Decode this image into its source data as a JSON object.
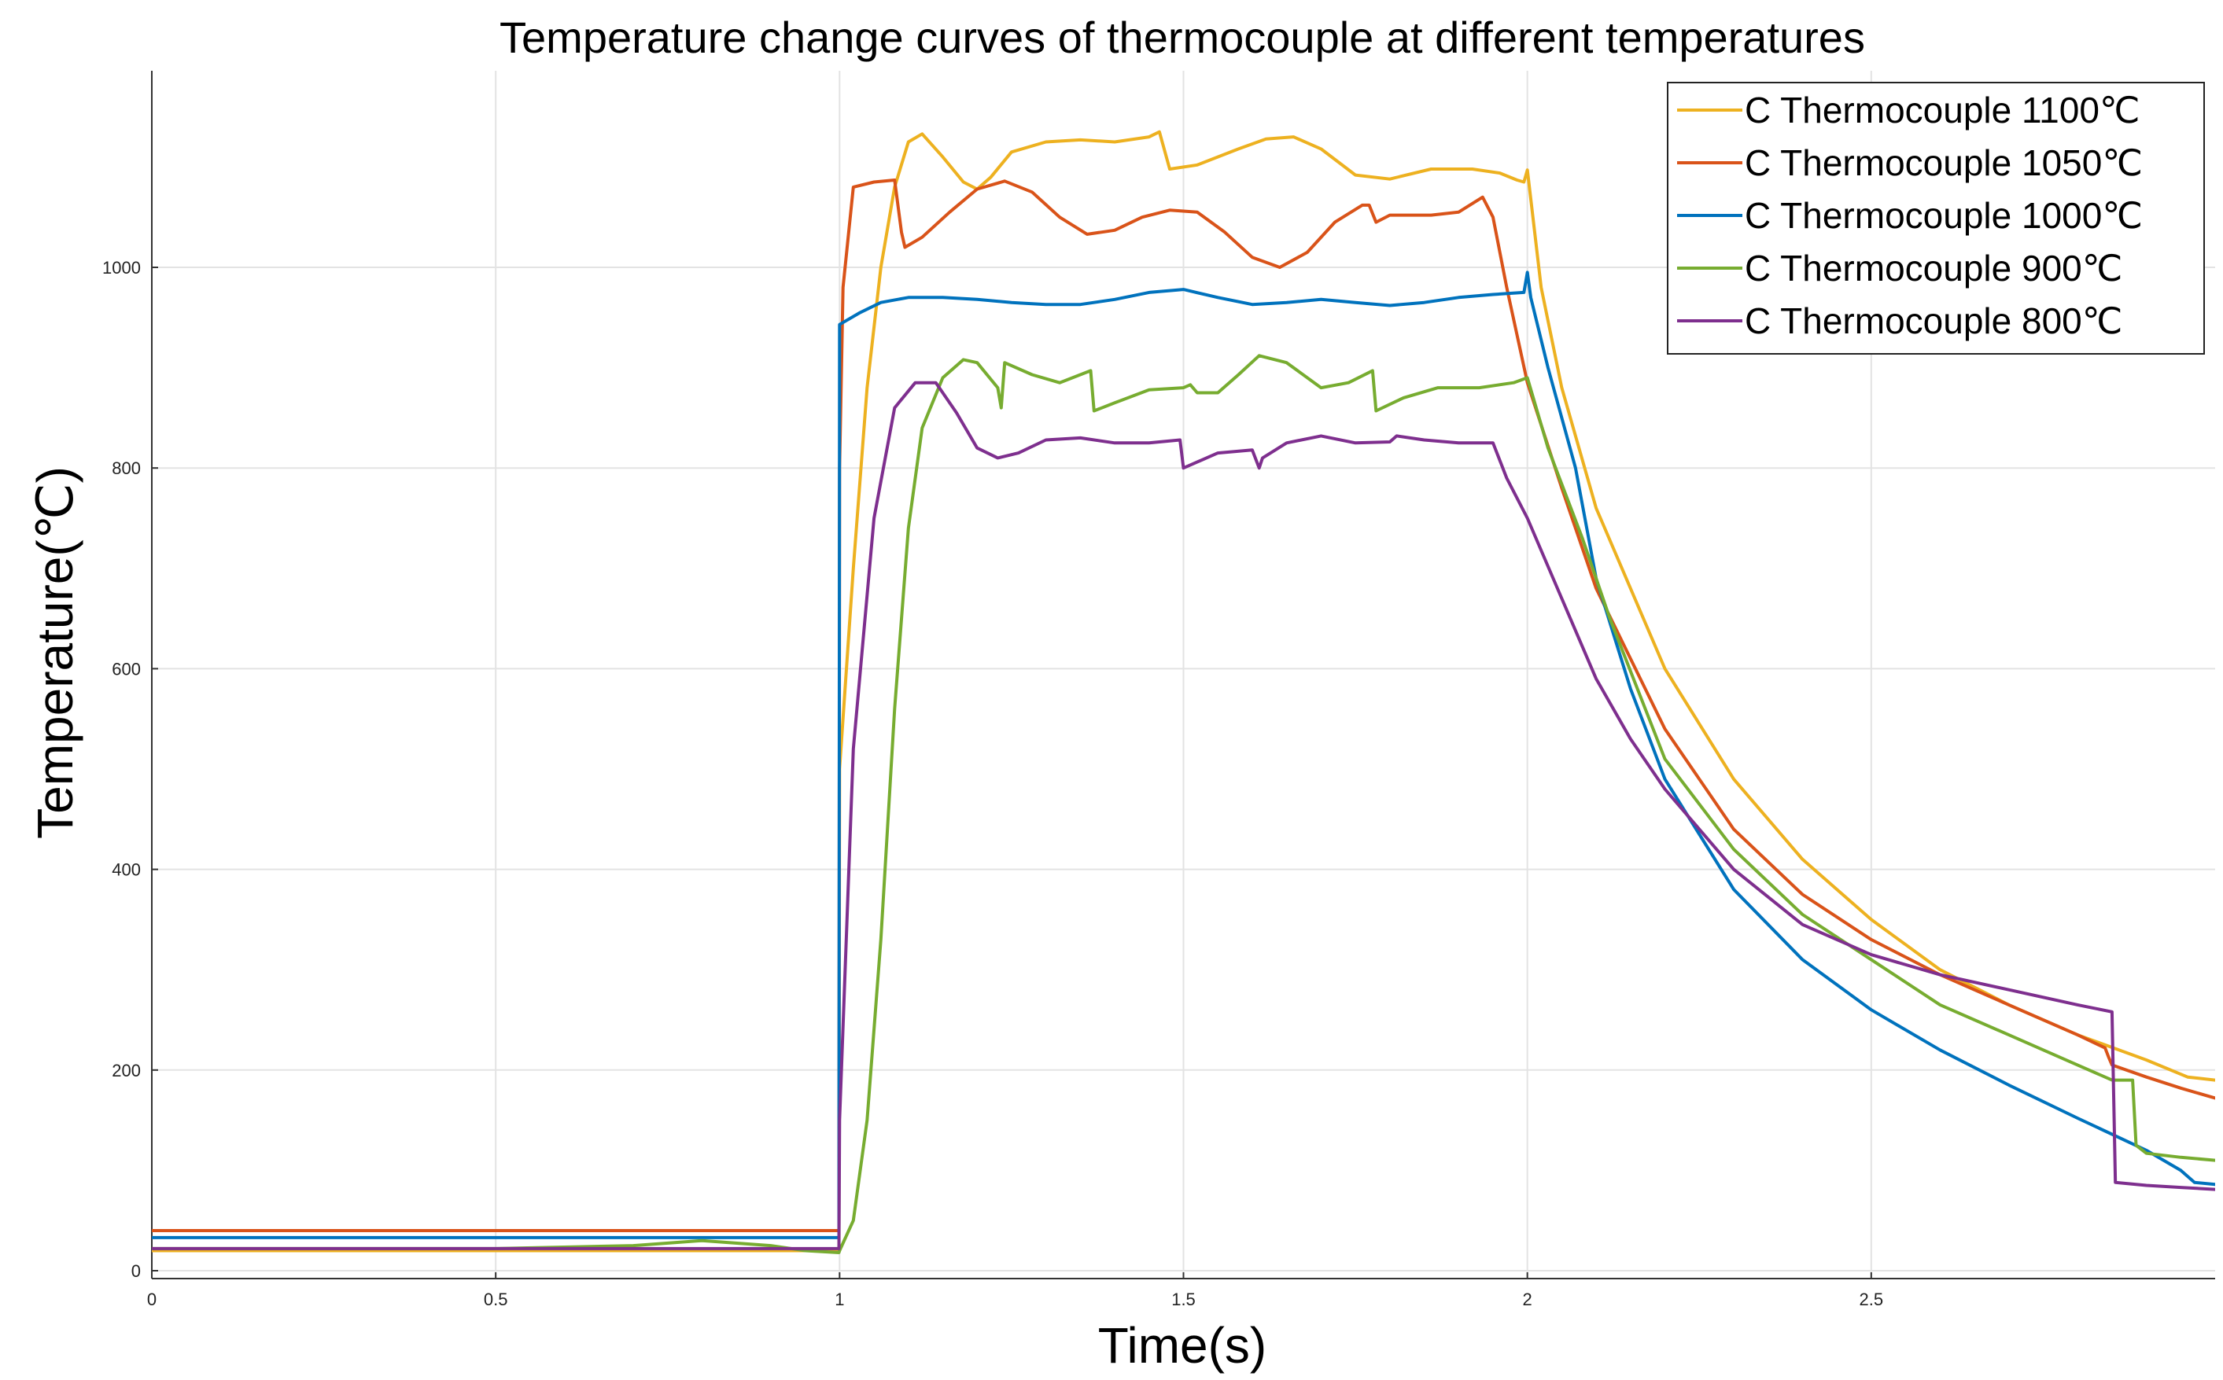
{
  "chart_data": {
    "type": "line",
    "title": "Temperature change curves of thermocouple at different temperatures",
    "xlabel": "Time(s)",
    "ylabel": "Temperature(℃)",
    "xlim": [
      0,
      3
    ],
    "ylim": [
      0,
      1200
    ],
    "x_ticks": [
      0,
      0.5,
      1,
      1.5,
      2,
      2.5
    ],
    "x_tick_labels": [
      "0",
      "0.5",
      "1",
      "1.5",
      "2",
      "2.5"
    ],
    "y_ticks": [
      0,
      200,
      400,
      600,
      800,
      1000
    ],
    "y_tick_labels": [
      "0",
      "200",
      "400",
      "600",
      "800",
      "1000"
    ],
    "grid": true,
    "legend_position": "top-right",
    "series": [
      {
        "name": "C Thermocouple 1100℃",
        "color": "#EDB120",
        "points": [
          [
            0,
            20
          ],
          [
            0.999,
            20
          ],
          [
            1.0,
            500
          ],
          [
            1.02,
            700
          ],
          [
            1.04,
            880
          ],
          [
            1.06,
            1000
          ],
          [
            1.08,
            1080
          ],
          [
            1.1,
            1125
          ],
          [
            1.12,
            1133
          ],
          [
            1.15,
            1110
          ],
          [
            1.18,
            1085
          ],
          [
            1.2,
            1078
          ],
          [
            1.22,
            1090
          ],
          [
            1.25,
            1115
          ],
          [
            1.3,
            1125
          ],
          [
            1.35,
            1127
          ],
          [
            1.4,
            1125
          ],
          [
            1.45,
            1130
          ],
          [
            1.465,
            1135
          ],
          [
            1.48,
            1098
          ],
          [
            1.52,
            1102
          ],
          [
            1.58,
            1118
          ],
          [
            1.62,
            1128
          ],
          [
            1.66,
            1130
          ],
          [
            1.7,
            1118
          ],
          [
            1.75,
            1092
          ],
          [
            1.8,
            1088
          ],
          [
            1.86,
            1098
          ],
          [
            1.92,
            1098
          ],
          [
            1.96,
            1094
          ],
          [
            1.985,
            1087
          ],
          [
            1.995,
            1085
          ],
          [
            2.0,
            1097
          ],
          [
            2.02,
            980
          ],
          [
            2.05,
            880
          ],
          [
            2.1,
            760
          ],
          [
            2.2,
            600
          ],
          [
            2.3,
            490
          ],
          [
            2.4,
            410
          ],
          [
            2.5,
            350
          ],
          [
            2.6,
            300
          ],
          [
            2.7,
            265
          ],
          [
            2.8,
            235
          ],
          [
            2.9,
            210
          ],
          [
            2.96,
            193
          ],
          [
            3.0,
            190
          ]
        ]
      },
      {
        "name": "C Thermocouple 1050℃",
        "color": "#D95319",
        "points": [
          [
            0,
            40
          ],
          [
            0.999,
            40
          ],
          [
            1.0,
            800
          ],
          [
            1.005,
            980
          ],
          [
            1.02,
            1080
          ],
          [
            1.05,
            1085
          ],
          [
            1.08,
            1087
          ],
          [
            1.09,
            1035
          ],
          [
            1.095,
            1020
          ],
          [
            1.12,
            1030
          ],
          [
            1.16,
            1055
          ],
          [
            1.2,
            1078
          ],
          [
            1.24,
            1086
          ],
          [
            1.28,
            1075
          ],
          [
            1.32,
            1050
          ],
          [
            1.36,
            1033
          ],
          [
            1.4,
            1037
          ],
          [
            1.44,
            1050
          ],
          [
            1.48,
            1057
          ],
          [
            1.52,
            1055
          ],
          [
            1.56,
            1035
          ],
          [
            1.6,
            1010
          ],
          [
            1.64,
            1000
          ],
          [
            1.68,
            1015
          ],
          [
            1.72,
            1045
          ],
          [
            1.76,
            1062
          ],
          [
            1.77,
            1062
          ],
          [
            1.78,
            1045
          ],
          [
            1.8,
            1052
          ],
          [
            1.86,
            1052
          ],
          [
            1.9,
            1055
          ],
          [
            1.935,
            1070
          ],
          [
            1.95,
            1050
          ],
          [
            1.97,
            980
          ],
          [
            2.0,
            885
          ],
          [
            2.05,
            780
          ],
          [
            2.1,
            680
          ],
          [
            2.2,
            540
          ],
          [
            2.3,
            440
          ],
          [
            2.4,
            375
          ],
          [
            2.5,
            330
          ],
          [
            2.6,
            295
          ],
          [
            2.7,
            265
          ],
          [
            2.8,
            235
          ],
          [
            2.84,
            222
          ],
          [
            2.845,
            213
          ],
          [
            2.85,
            205
          ],
          [
            2.9,
            193
          ],
          [
            2.95,
            182
          ],
          [
            3.0,
            172
          ]
        ]
      },
      {
        "name": "C Thermocouple 1000℃",
        "color": "#0072BD",
        "points": [
          [
            0,
            33
          ],
          [
            0.999,
            33
          ],
          [
            1.0,
            943
          ],
          [
            1.03,
            955
          ],
          [
            1.06,
            965
          ],
          [
            1.1,
            970
          ],
          [
            1.15,
            970
          ],
          [
            1.2,
            968
          ],
          [
            1.25,
            965
          ],
          [
            1.3,
            963
          ],
          [
            1.35,
            963
          ],
          [
            1.4,
            968
          ],
          [
            1.45,
            975
          ],
          [
            1.5,
            978
          ],
          [
            1.55,
            970
          ],
          [
            1.6,
            963
          ],
          [
            1.65,
            965
          ],
          [
            1.7,
            968
          ],
          [
            1.75,
            965
          ],
          [
            1.8,
            962
          ],
          [
            1.85,
            965
          ],
          [
            1.9,
            970
          ],
          [
            1.95,
            973
          ],
          [
            1.995,
            975
          ],
          [
            2.0,
            995
          ],
          [
            2.005,
            970
          ],
          [
            2.03,
            900
          ],
          [
            2.07,
            800
          ],
          [
            2.1,
            690
          ],
          [
            2.15,
            580
          ],
          [
            2.2,
            490
          ],
          [
            2.3,
            380
          ],
          [
            2.4,
            310
          ],
          [
            2.5,
            260
          ],
          [
            2.6,
            220
          ],
          [
            2.7,
            185
          ],
          [
            2.8,
            152
          ],
          [
            2.9,
            120
          ],
          [
            2.95,
            100
          ],
          [
            2.97,
            88
          ],
          [
            3.0,
            86
          ]
        ]
      },
      {
        "name": "C Thermocouple 900℃",
        "color": "#77AC30",
        "points": [
          [
            0,
            22
          ],
          [
            0.5,
            22
          ],
          [
            0.7,
            25
          ],
          [
            0.8,
            30
          ],
          [
            0.9,
            25
          ],
          [
            0.95,
            20
          ],
          [
            0.999,
            18
          ],
          [
            1.0,
            20
          ],
          [
            1.02,
            50
          ],
          [
            1.04,
            150
          ],
          [
            1.06,
            330
          ],
          [
            1.08,
            560
          ],
          [
            1.1,
            740
          ],
          [
            1.12,
            840
          ],
          [
            1.15,
            890
          ],
          [
            1.18,
            908
          ],
          [
            1.2,
            905
          ],
          [
            1.23,
            880
          ],
          [
            1.235,
            860
          ],
          [
            1.24,
            905
          ],
          [
            1.28,
            893
          ],
          [
            1.32,
            885
          ],
          [
            1.365,
            897
          ],
          [
            1.37,
            857
          ],
          [
            1.4,
            865
          ],
          [
            1.45,
            878
          ],
          [
            1.5,
            880
          ],
          [
            1.51,
            883
          ],
          [
            1.52,
            875
          ],
          [
            1.55,
            875
          ],
          [
            1.58,
            893
          ],
          [
            1.61,
            912
          ],
          [
            1.65,
            905
          ],
          [
            1.7,
            880
          ],
          [
            1.74,
            885
          ],
          [
            1.775,
            897
          ],
          [
            1.78,
            857
          ],
          [
            1.82,
            870
          ],
          [
            1.87,
            880
          ],
          [
            1.93,
            880
          ],
          [
            1.98,
            885
          ],
          [
            2.0,
            890
          ],
          [
            2.03,
            820
          ],
          [
            2.08,
            730
          ],
          [
            2.12,
            650
          ],
          [
            2.2,
            510
          ],
          [
            2.3,
            420
          ],
          [
            2.4,
            355
          ],
          [
            2.5,
            310
          ],
          [
            2.6,
            265
          ],
          [
            2.7,
            235
          ],
          [
            2.8,
            205
          ],
          [
            2.85,
            190
          ],
          [
            2.88,
            190
          ],
          [
            2.885,
            125
          ],
          [
            2.9,
            117
          ],
          [
            2.95,
            113
          ],
          [
            3.0,
            110
          ]
        ]
      },
      {
        "name": "C Thermocouple 800℃",
        "color": "#7E2F8E",
        "points": [
          [
            0,
            22
          ],
          [
            0.999,
            22
          ],
          [
            1.0,
            150
          ],
          [
            1.02,
            520
          ],
          [
            1.05,
            750
          ],
          [
            1.08,
            860
          ],
          [
            1.11,
            885
          ],
          [
            1.14,
            885
          ],
          [
            1.17,
            855
          ],
          [
            1.2,
            820
          ],
          [
            1.23,
            810
          ],
          [
            1.26,
            815
          ],
          [
            1.3,
            828
          ],
          [
            1.35,
            830
          ],
          [
            1.4,
            825
          ],
          [
            1.45,
            825
          ],
          [
            1.495,
            828
          ],
          [
            1.5,
            800
          ],
          [
            1.55,
            815
          ],
          [
            1.6,
            818
          ],
          [
            1.61,
            800
          ],
          [
            1.615,
            810
          ],
          [
            1.65,
            825
          ],
          [
            1.7,
            832
          ],
          [
            1.75,
            825
          ],
          [
            1.8,
            826
          ],
          [
            1.81,
            832
          ],
          [
            1.85,
            828
          ],
          [
            1.9,
            825
          ],
          [
            1.95,
            825
          ],
          [
            1.97,
            790
          ],
          [
            2.0,
            750
          ],
          [
            2.05,
            670
          ],
          [
            2.1,
            590
          ],
          [
            2.15,
            530
          ],
          [
            2.2,
            480
          ],
          [
            2.3,
            400
          ],
          [
            2.4,
            345
          ],
          [
            2.5,
            315
          ],
          [
            2.6,
            295
          ],
          [
            2.7,
            280
          ],
          [
            2.8,
            265
          ],
          [
            2.85,
            258
          ],
          [
            2.855,
            88
          ],
          [
            2.9,
            85
          ],
          [
            2.95,
            83
          ],
          [
            3.0,
            81
          ]
        ]
      }
    ]
  }
}
